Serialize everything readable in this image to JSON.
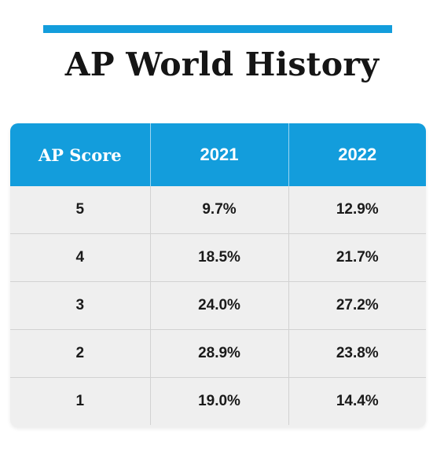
{
  "title": "AP World History",
  "colors": {
    "accent": "#139ddc",
    "header_bg": "#139ddc",
    "row_bg": "#efefef",
    "text": "#151515"
  },
  "table": {
    "headers": [
      "AP Score",
      "2021",
      "2022"
    ],
    "rows": [
      [
        "5",
        "9.7%",
        "12.9%"
      ],
      [
        "4",
        "18.5%",
        "21.7%"
      ],
      [
        "3",
        "24.0%",
        "27.2%"
      ],
      [
        "2",
        "28.9%",
        "23.8%"
      ],
      [
        "1",
        "19.0%",
        "14.4%"
      ]
    ]
  }
}
